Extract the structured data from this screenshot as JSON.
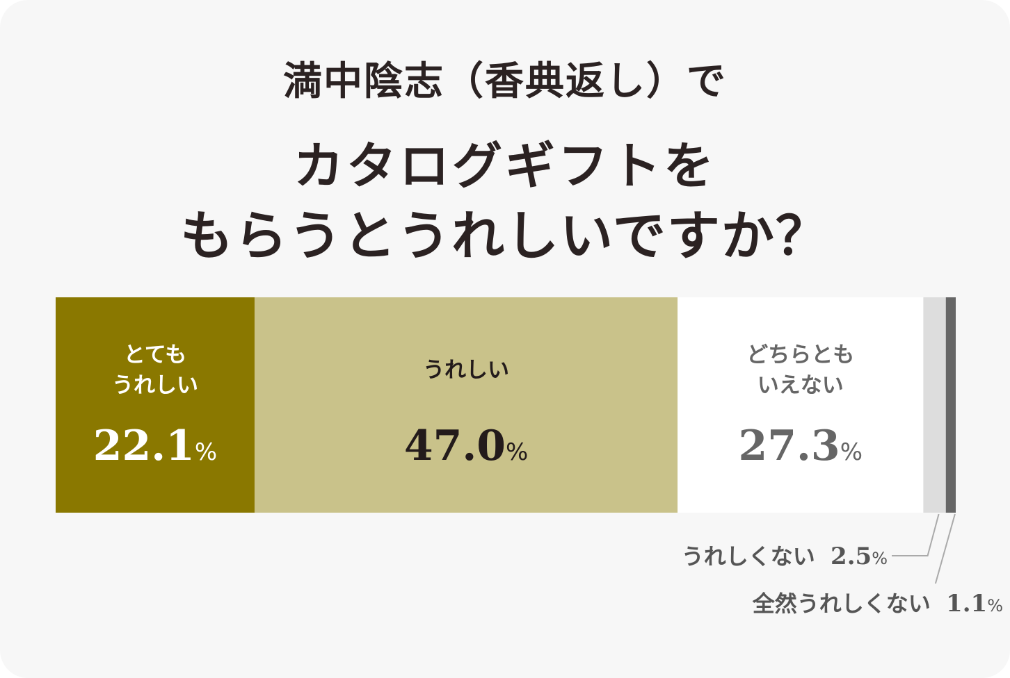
{
  "title": {
    "line1": "満中陰志（香典返し）で",
    "line2": "カタログギフトを",
    "line3": "もらうとうれしいですか？"
  },
  "chart_data": {
    "type": "bar",
    "orientation": "horizontal-stacked-100",
    "unit": "%",
    "xlim": [
      0,
      100
    ],
    "categories": [
      "とてもうれしい",
      "うれしい",
      "どちらともいえない",
      "うれしくない",
      "全然うれしくない"
    ],
    "values": [
      22.1,
      47.0,
      27.3,
      2.5,
      1.1
    ],
    "segments": [
      {
        "label_lines": [
          "とても",
          "うれしい"
        ],
        "value": 22.1,
        "value_text": "22.1",
        "unit": "%",
        "color": "#8a7800",
        "text_color": "#ffffff",
        "label_position": "inside"
      },
      {
        "label_lines": [
          "うれしい"
        ],
        "value": 47.0,
        "value_text": "47.0",
        "unit": "%",
        "color": "#c9c28a",
        "text_color": "#231b1b",
        "label_position": "inside"
      },
      {
        "label_lines": [
          "どちらとも",
          "いえない"
        ],
        "value": 27.3,
        "value_text": "27.3",
        "unit": "%",
        "color": "#ffffff",
        "text_color": "#666666",
        "label_position": "inside"
      },
      {
        "label_lines": [
          "うれしくない"
        ],
        "value": 2.5,
        "value_text": "2.5",
        "unit": "%",
        "color": "#dddddd",
        "text_color": "#555555",
        "label_position": "outside-callout"
      },
      {
        "label_lines": [
          "全然うれしくない"
        ],
        "value": 1.1,
        "value_text": "1.1",
        "unit": "%",
        "color": "#666666",
        "text_color": "#555555",
        "label_position": "outside-callout"
      }
    ],
    "grid": false,
    "legend": "none"
  },
  "colors": {
    "background": "#f7f7f7",
    "title": "#2b2222",
    "callout_line": "#aaaaaa"
  }
}
